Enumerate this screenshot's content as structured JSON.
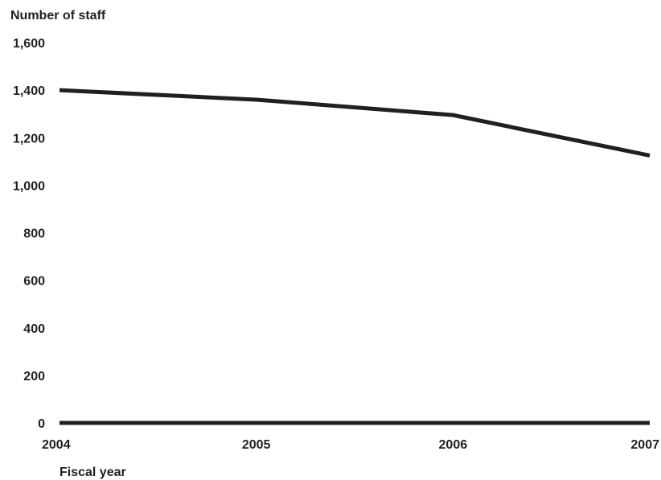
{
  "chart_data": {
    "type": "line",
    "title": "",
    "ylabel": "Number of staff",
    "xlabel": "Fiscal year",
    "x": [
      "2004",
      "2005",
      "2006",
      "2007"
    ],
    "yticks": [
      "0",
      "200",
      "400",
      "600",
      "800",
      "1,000",
      "1,200",
      "1,400",
      "1,600"
    ],
    "ylim": [
      0,
      1600
    ],
    "grid": false,
    "series": [
      {
        "values": [
          1400,
          1360,
          1295,
          1125
        ]
      }
    ],
    "colors": {
      "line": "#231f20",
      "axis": "#231f20"
    }
  }
}
